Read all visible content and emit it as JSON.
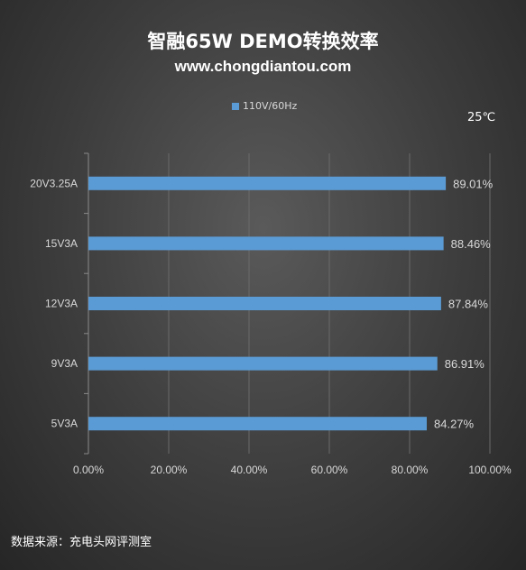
{
  "header": {
    "title": "智融65W DEMO转换效率",
    "subtitle": "www.chongdiantou.com"
  },
  "temperature": "25℃",
  "footer": "数据来源：充电头网评测室",
  "chart_data": {
    "type": "bar",
    "orientation": "horizontal",
    "categories": [
      "20V3.25A",
      "15V3A",
      "12V3A",
      "9V3A",
      "5V3A"
    ],
    "series": [
      {
        "name": "110V/60Hz",
        "values": [
          89.01,
          88.46,
          87.84,
          86.91,
          84.27
        ],
        "color": "#5b9bd5"
      }
    ],
    "data_labels": [
      "89.01%",
      "88.46%",
      "87.84%",
      "86.91%",
      "84.27%"
    ],
    "x_ticks": [
      "0.00%",
      "20.00%",
      "40.00%",
      "60.00%",
      "80.00%",
      "100.00%"
    ],
    "xlim": [
      0,
      100
    ],
    "grid": true,
    "legend_position": "top"
  }
}
